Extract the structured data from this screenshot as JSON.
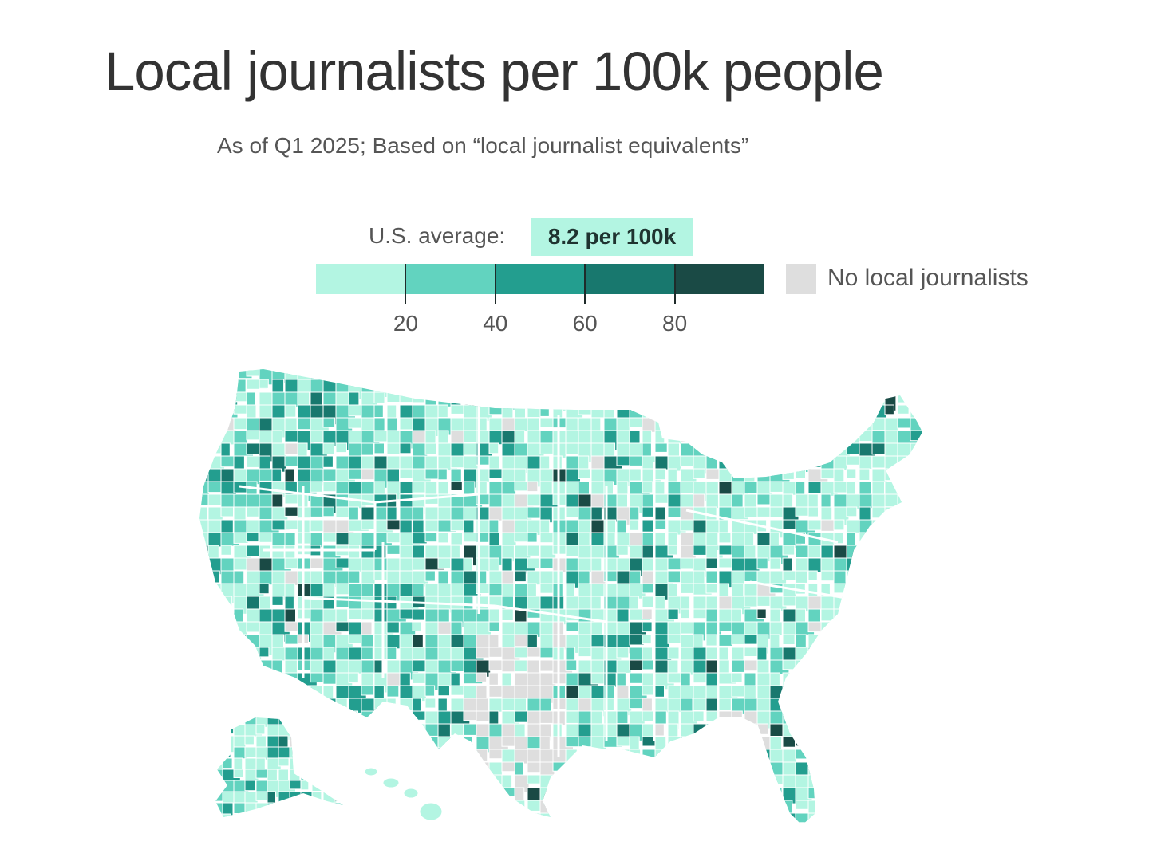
{
  "title": "Local journalists per 100k people",
  "subtitle": "As of Q1 2025; Based on “local journalist equivalents”",
  "average": {
    "label": "U.S. average:",
    "value": "8.2 per 100k"
  },
  "legend": {
    "bins": [
      {
        "max": 20,
        "color": "#b3f5e2"
      },
      {
        "max": 40,
        "color": "#62d3bf"
      },
      {
        "max": 60,
        "color": "#239e8f"
      },
      {
        "max": 80,
        "color": "#18786e"
      },
      {
        "max": 100,
        "color": "#1a4a45"
      }
    ],
    "ticks": [
      "20",
      "40",
      "60",
      "80"
    ],
    "no_data_label": "No local journalists",
    "no_data_color": "#dedede"
  },
  "map": {
    "region": "United States counties",
    "base_color": "#b3f5e2",
    "border_color": "#ffffff"
  }
}
